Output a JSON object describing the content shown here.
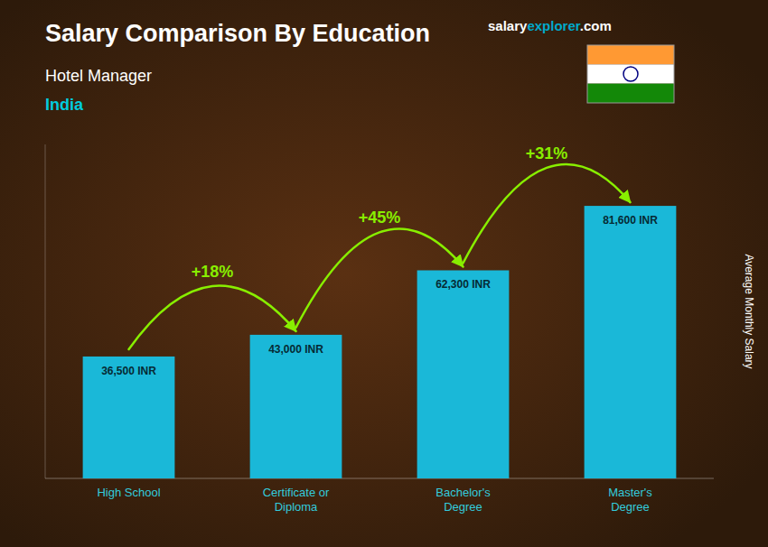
{
  "chart_data": {
    "type": "bar",
    "title": "Salary Comparison By Education",
    "subtitle": "Hotel Manager",
    "country": "India",
    "watermark": [
      "salary",
      "explorer",
      ".com"
    ],
    "ylabel": "Average Monthly Salary",
    "categories": [
      "High School",
      "Certificate or\nDiploma",
      "Bachelor's\nDegree",
      "Master's\nDegree"
    ],
    "values": [
      36500,
      43000,
      62300,
      81600
    ],
    "value_labels": [
      "36,500 INR",
      "43,000 INR",
      "62,300 INR",
      "81,600 INR"
    ],
    "data_labels": true,
    "annotations": [
      "+18%",
      "+45%",
      "+31%"
    ],
    "color": "#1ab8d8",
    "ylim": [
      0,
      100000
    ],
    "yticks": [],
    "tick_labels": "x",
    "grid": false
  }
}
